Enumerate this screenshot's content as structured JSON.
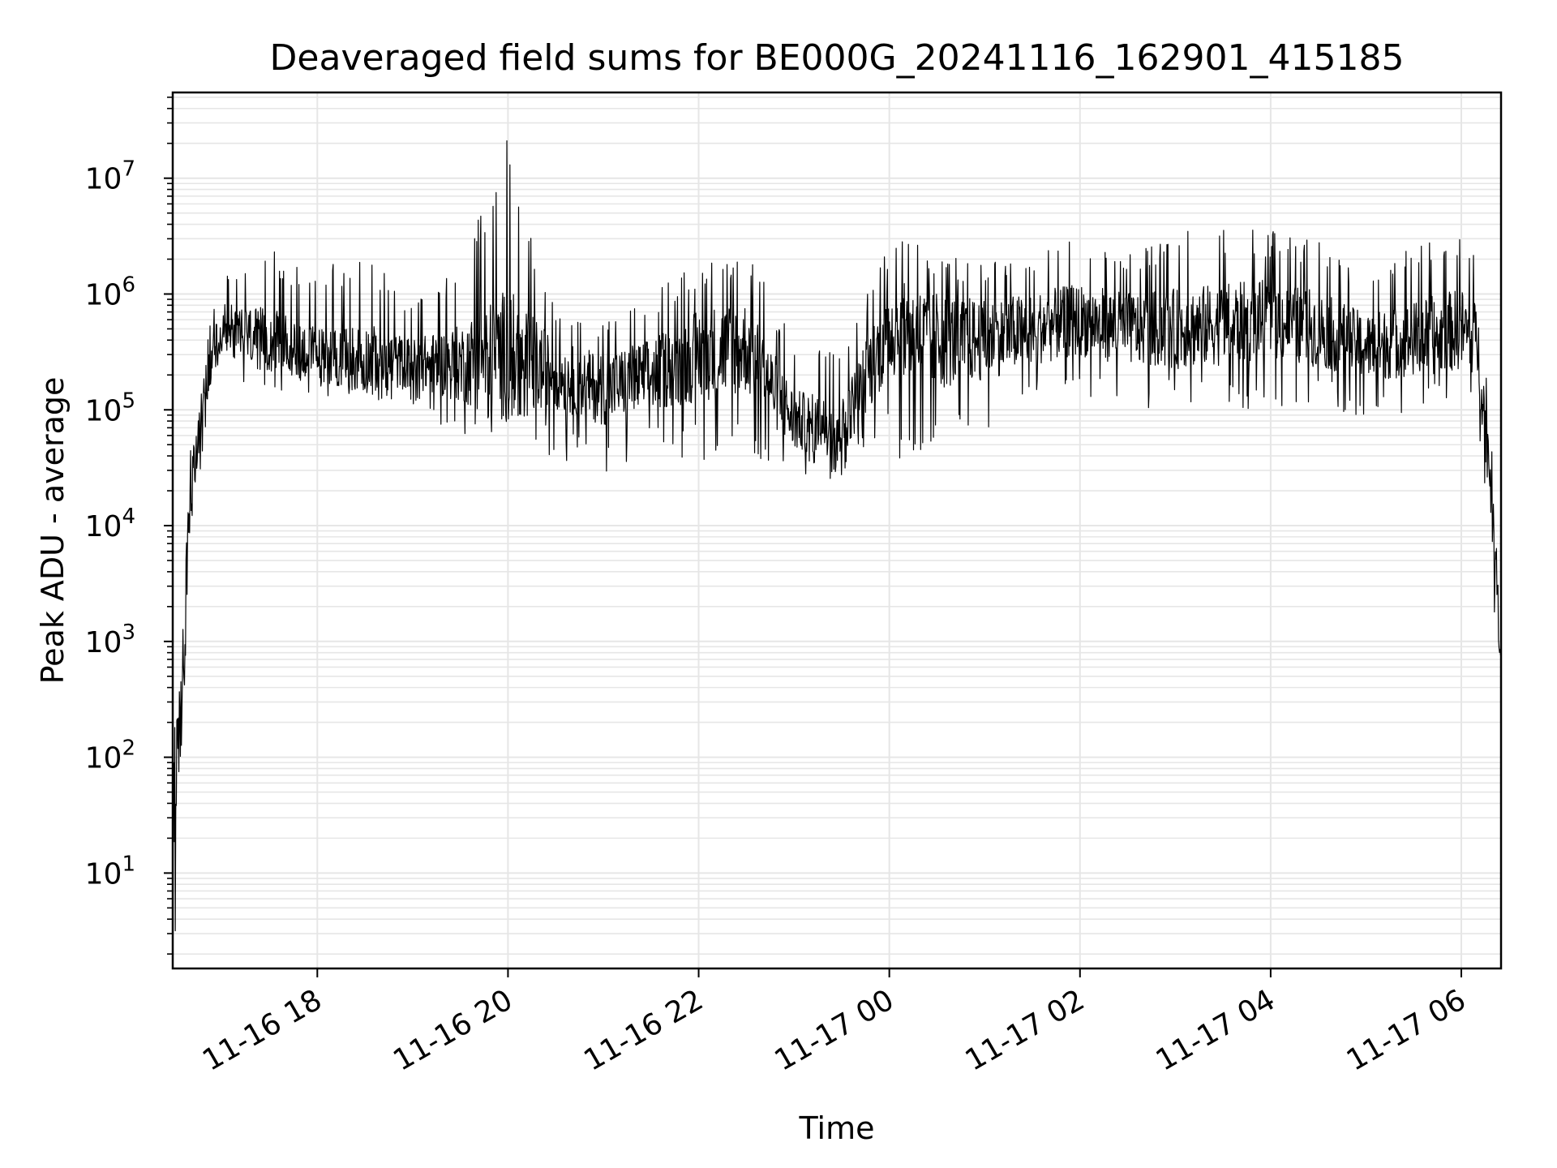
{
  "chart_data": {
    "type": "line",
    "title": "Deaveraged field sums for BE000G_20241116_162901_415185",
    "xlabel": "Time",
    "ylabel": "Peak ADU - average",
    "y_scale": "log",
    "ylim": [
      1.5,
      55000000
    ],
    "xlim": [
      "2024-11-16 16:29",
      "2024-11-17 06:25"
    ],
    "x_ticks": [
      {
        "time": "2024-11-16 18:00",
        "label": "11-16 18"
      },
      {
        "time": "2024-11-16 20:00",
        "label": "11-16 20"
      },
      {
        "time": "2024-11-16 22:00",
        "label": "11-16 22"
      },
      {
        "time": "2024-11-17 00:00",
        "label": "11-17 00"
      },
      {
        "time": "2024-11-17 02:00",
        "label": "11-17 02"
      },
      {
        "time": "2024-11-17 04:00",
        "label": "11-17 04"
      },
      {
        "time": "2024-11-17 06:00",
        "label": "11-17 06"
      }
    ],
    "y_ticks": [
      {
        "value": 10,
        "base": "10",
        "exp": "1"
      },
      {
        "value": 100,
        "base": "10",
        "exp": "2"
      },
      {
        "value": 1000,
        "base": "10",
        "exp": "3"
      },
      {
        "value": 10000,
        "base": "10",
        "exp": "4"
      },
      {
        "value": 100000,
        "base": "10",
        "exp": "5"
      },
      {
        "value": 1000000,
        "base": "10",
        "exp": "6"
      },
      {
        "value": 10000000,
        "base": "10",
        "exp": "7"
      }
    ],
    "grid": true,
    "line_color": "#000000",
    "grid_color": "#e6e6e6",
    "series": [
      {
        "values_note_free": true,
        "envelope": [
          {
            "time": "2024-11-16 16:29",
            "low": 1.5,
            "mid": 30,
            "high": 200
          },
          {
            "time": "2024-11-16 16:35",
            "low": 20,
            "mid": 300,
            "high": 900
          },
          {
            "time": "2024-11-16 16:40",
            "low": 3000,
            "mid": 15000,
            "high": 50000
          },
          {
            "time": "2024-11-16 16:48",
            "low": 40000,
            "mid": 150000,
            "high": 350000
          },
          {
            "time": "2024-11-16 17:00",
            "low": 150000,
            "mid": 500000,
            "high": 1400000
          },
          {
            "time": "2024-11-16 17:30",
            "low": 150000,
            "mid": 400000,
            "high": 2500000
          },
          {
            "time": "2024-11-16 18:00",
            "low": 130000,
            "mid": 300000,
            "high": 1500000
          },
          {
            "time": "2024-11-16 18:30",
            "low": 120000,
            "mid": 280000,
            "high": 2700000
          },
          {
            "time": "2024-11-16 19:00",
            "low": 100000,
            "mid": 250000,
            "high": 900000
          },
          {
            "time": "2024-11-16 19:30",
            "low": 60000,
            "mid": 250000,
            "high": 1800000
          },
          {
            "time": "2024-11-16 20:00",
            "low": 60000,
            "mid": 300000,
            "high": 25000000
          },
          {
            "time": "2024-11-16 20:30",
            "low": 35000,
            "mid": 200000,
            "high": 700000
          },
          {
            "time": "2024-11-16 21:00",
            "low": 25000,
            "mid": 150000,
            "high": 600000
          },
          {
            "time": "2024-11-16 21:30",
            "low": 40000,
            "mid": 200000,
            "high": 1000000
          },
          {
            "time": "2024-11-16 22:00",
            "low": 30000,
            "mid": 300000,
            "high": 2000000
          },
          {
            "time": "2024-11-16 22:30",
            "low": 40000,
            "mid": 350000,
            "high": 2500000
          },
          {
            "time": "2024-11-16 23:00",
            "low": 25000,
            "mid": 80000,
            "high": 400000
          },
          {
            "time": "2024-11-16 23:30",
            "low": 25000,
            "mid": 70000,
            "high": 300000
          },
          {
            "time": "2024-11-17 00:00",
            "low": 40000,
            "mid": 500000,
            "high": 3000000
          },
          {
            "time": "2024-11-17 00:30",
            "low": 30000,
            "mid": 400000,
            "high": 2500000
          },
          {
            "time": "2024-11-17 01:00",
            "low": 50000,
            "mid": 400000,
            "high": 1800000
          },
          {
            "time": "2024-11-17 01:30",
            "low": 100000,
            "mid": 500000,
            "high": 2500000
          },
          {
            "time": "2024-11-17 02:00",
            "low": 120000,
            "mid": 600000,
            "high": 3000000
          },
          {
            "time": "2024-11-17 02:30",
            "low": 100000,
            "mid": 500000,
            "high": 2500000
          },
          {
            "time": "2024-11-17 03:00",
            "low": 100000,
            "mid": 500000,
            "high": 3500000
          },
          {
            "time": "2024-11-17 03:30",
            "low": 100000,
            "mid": 550000,
            "high": 3800000
          },
          {
            "time": "2024-11-17 04:00",
            "low": 100000,
            "mid": 600000,
            "high": 3500000
          },
          {
            "time": "2024-11-17 04:30",
            "low": 100000,
            "mid": 500000,
            "high": 3000000
          },
          {
            "time": "2024-11-17 05:00",
            "low": 80000,
            "mid": 350000,
            "high": 1500000
          },
          {
            "time": "2024-11-17 05:30",
            "low": 100000,
            "mid": 400000,
            "high": 3000000
          },
          {
            "time": "2024-11-17 06:00",
            "low": 100000,
            "mid": 500000,
            "high": 3800000
          },
          {
            "time": "2024-11-17 06:10",
            "low": 100000,
            "mid": 400000,
            "high": 2500000
          },
          {
            "time": "2024-11-17 06:18",
            "low": 5000,
            "mid": 30000,
            "high": 100000
          },
          {
            "time": "2024-11-17 06:25",
            "low": 300,
            "mid": 600,
            "high": 1000
          }
        ]
      }
    ]
  }
}
